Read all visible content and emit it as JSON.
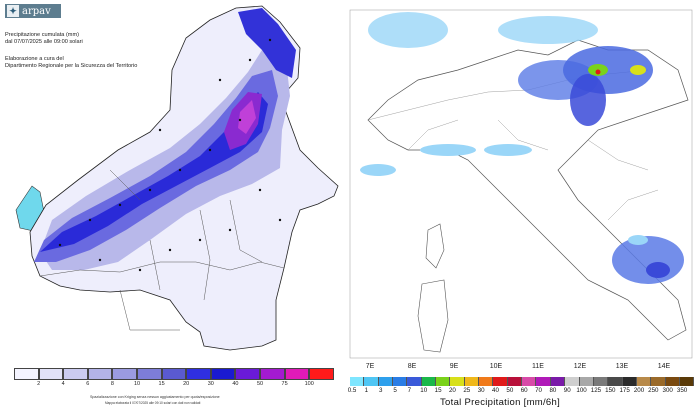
{
  "left_map": {
    "logo_text": "arpav",
    "title_line1": "Precipitazione cumulata (mm)",
    "title_line2": "dal 07/07/2025 alle 09:00 solari",
    "credit_line1": "Elaborazione a cura del",
    "credit_line2": "Dipartimento Regionale per la Sicurezza del Territorio",
    "legend_labels": [
      "2",
      "4",
      "6",
      "8",
      "10",
      "15",
      "20",
      "30",
      "40",
      "50",
      "75",
      "100"
    ],
    "legend_colors": [
      "#f4f4ff",
      "#e2e2f8",
      "#cbcbf0",
      "#b3b3e8",
      "#9b9be0",
      "#7d7dd8",
      "#5a5ad0",
      "#2f2fe0",
      "#1a1ad0",
      "#6a1ad8",
      "#a41ad0",
      "#e01ab8",
      "#ff1a1a"
    ],
    "footnote_line1": "Spazializzazione con Kriging senza nessun aggiustamento per quota/esposizione",
    "footnote_line2": "Mappa elaborata il 07/07/2025 alle 09:10 solari con dati non validati"
  },
  "right_map": {
    "longitude_labels": [
      "7E",
      "8E",
      "9E",
      "10E",
      "11E",
      "12E",
      "13E",
      "14E"
    ],
    "scale_labels": [
      "0.5",
      "1",
      "3",
      "5",
      "7",
      "10",
      "15",
      "20",
      "25",
      "30",
      "40",
      "50",
      "60",
      "70",
      "80",
      "90",
      "100",
      "125",
      "150",
      "175",
      "200",
      "250",
      "300",
      "350"
    ],
    "scale_colors": [
      "#7fe6ff",
      "#4fc6f4",
      "#2ea0ec",
      "#2a7de6",
      "#3a5ad9",
      "#1ab84a",
      "#7ad21a",
      "#d8e01a",
      "#f0b81a",
      "#f07a1a",
      "#e01a1a",
      "#b8103a",
      "#d84aa8",
      "#b01ab8",
      "#7a1aa8",
      "#cfcfcf",
      "#a8a8a8",
      "#7a7a7a",
      "#4a4a4a",
      "#2a2a2a",
      "#b88a4a",
      "#9a6a2a",
      "#7a4a10",
      "#5a3a08"
    ],
    "title": "Total Precipitation [mm/6h]"
  }
}
